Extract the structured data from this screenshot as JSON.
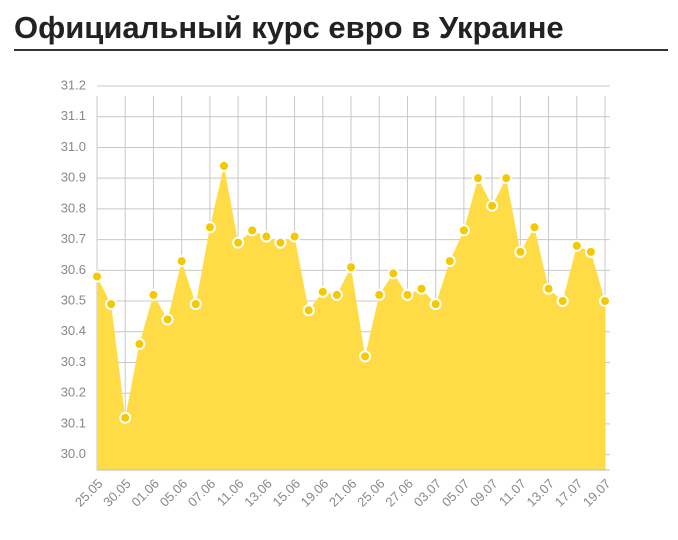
{
  "chart_data": {
    "type": "area",
    "title": "Официальный курс евро в Украине",
    "categories": [
      "25.05",
      null,
      "30.05",
      null,
      "01.06",
      null,
      "05.06",
      null,
      "07.06",
      null,
      "11.06",
      null,
      "13.06",
      null,
      "15.06",
      null,
      "19.06",
      null,
      "21.06",
      null,
      "25.06",
      null,
      "27.06",
      null,
      "03.07",
      null,
      "05.07",
      null,
      "09.07",
      null,
      "11.07",
      null,
      "13.07",
      null,
      "17.07",
      null,
      "19.07"
    ],
    "values": [
      30.58,
      30.49,
      30.12,
      30.36,
      30.52,
      30.44,
      30.63,
      30.49,
      30.74,
      30.94,
      30.69,
      30.73,
      30.71,
      30.69,
      30.71,
      30.47,
      30.53,
      30.52,
      30.61,
      30.32,
      30.52,
      30.59,
      30.52,
      30.54,
      30.49,
      30.63,
      30.73,
      30.9,
      30.81,
      30.9,
      30.66,
      30.74,
      30.54,
      30.5,
      30.68,
      30.66,
      30.5
    ],
    "color": "#ffdc45",
    "point_color": "#f5c800",
    "ylim": [
      29.95,
      31.2
    ],
    "yticks": [
      {
        "value": 30,
        "label": "30.0"
      },
      30.1,
      30.2,
      30.3,
      30.4,
      30.5,
      30.6,
      30.7,
      30.8,
      30.9,
      {
        "value": 31,
        "label": "31.0"
      },
      31.1,
      31.2
    ],
    "grid": true
  }
}
